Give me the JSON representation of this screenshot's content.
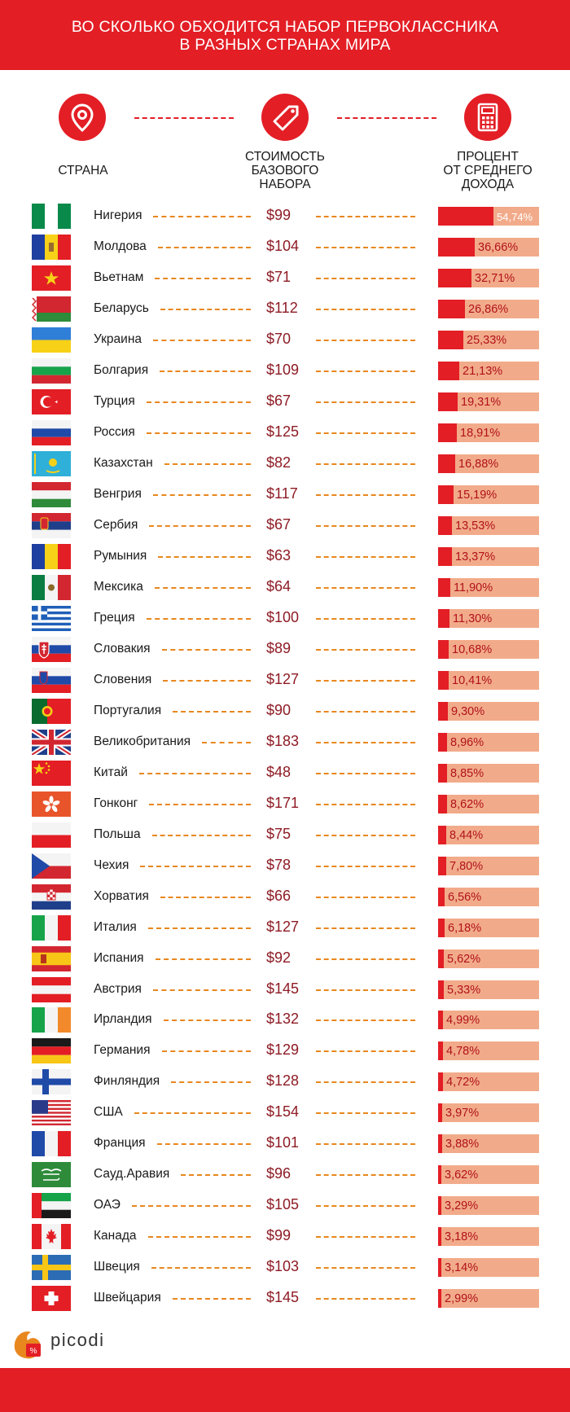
{
  "header": {
    "title_line1": "ВО СКОЛЬКО ОБХОДИТСЯ НАБОР ПЕРВОКЛАССНИКА",
    "title_line2": "В РАЗНЫХ СТРАНАХ МИРА"
  },
  "columns": {
    "country": "СТРАНА",
    "price_line1": "СТОИМОСТЬ",
    "price_line2": "БАЗОВОГО",
    "price_line3": "НАБОРА",
    "percent_line1": "ПРОЦЕНТ",
    "percent_line2": "ОТ СРЕДНЕГО",
    "percent_line3": "ДОХОДА"
  },
  "icons": [
    "location-pin-icon",
    "price-tag-icon",
    "calculator-icon"
  ],
  "colors": {
    "accent": "#e31e25",
    "bar_background": "#f2ab8a",
    "dash": "#e8871e",
    "price_text": "#8e1b24"
  },
  "chart_data": {
    "type": "table",
    "categories": [
      "Нигерия",
      "Молдова",
      "Вьетнам",
      "Беларусь",
      "Украина",
      "Болгария",
      "Турция",
      "Россия",
      "Казахстан",
      "Венгрия",
      "Сербия",
      "Румыния",
      "Мексика",
      "Греция",
      "Словакия",
      "Словения",
      "Португалия",
      "Великобритания",
      "Китай",
      "Гонконг",
      "Польша",
      "Чехия",
      "Хорватия",
      "Италия",
      "Испания",
      "Австрия",
      "Ирландия",
      "Германия",
      "Финляндия",
      "США",
      "Франция",
      "Сауд.Аравия",
      "ОАЭ",
      "Канада",
      "Швеция",
      "Швейцария"
    ],
    "prices": [
      "$99",
      "$104",
      "$71",
      "$112",
      "$70",
      "$109",
      "$67",
      "$125",
      "$82",
      "$117",
      "$67",
      "$63",
      "$64",
      "$100",
      "$89",
      "$127",
      "$90",
      "$183",
      "$48",
      "$171",
      "$75",
      "$78",
      "$66",
      "$127",
      "$92",
      "$145",
      "$132",
      "$129",
      "$128",
      "$154",
      "$101",
      "$96",
      "$105",
      "$99",
      "$103",
      "$145"
    ],
    "percent_labels": [
      "54,74%",
      "36,66%",
      "32,71%",
      "26,86%",
      "25,33%",
      "21,13%",
      "19,31%",
      "18,91%",
      "16,88%",
      "15,19%",
      "13,53%",
      "13,37%",
      "11,90%",
      "11,30%",
      "10,68%",
      "10,41%",
      "9,30%",
      "8,96%",
      "8,85%",
      "8,62%",
      "8,44%",
      "7,80%",
      "6,56%",
      "6,18%",
      "5,62%",
      "5,33%",
      "4,99%",
      "4,78%",
      "4,72%",
      "3,97%",
      "3,88%",
      "3,62%",
      "3,29%",
      "3,18%",
      "3,14%",
      "2,99%"
    ],
    "percent_values": [
      54.74,
      36.66,
      32.71,
      26.86,
      25.33,
      21.13,
      19.31,
      18.91,
      16.88,
      15.19,
      13.53,
      13.37,
      11.9,
      11.3,
      10.68,
      10.41,
      9.3,
      8.96,
      8.85,
      8.62,
      8.44,
      7.8,
      6.56,
      6.18,
      5.62,
      5.33,
      4.99,
      4.78,
      4.72,
      3.97,
      3.88,
      3.62,
      3.29,
      3.18,
      3.14,
      2.99
    ],
    "flags": [
      "nigeria-flag-icon",
      "moldova-flag-icon",
      "vietnam-flag-icon",
      "belarus-flag-icon",
      "ukraine-flag-icon",
      "bulgaria-flag-icon",
      "turkey-flag-icon",
      "russia-flag-icon",
      "kazakhstan-flag-icon",
      "hungary-flag-icon",
      "serbia-flag-icon",
      "romania-flag-icon",
      "mexico-flag-icon",
      "greece-flag-icon",
      "slovakia-flag-icon",
      "slovenia-flag-icon",
      "portugal-flag-icon",
      "uk-flag-icon",
      "china-flag-icon",
      "hongkong-flag-icon",
      "poland-flag-icon",
      "czechia-flag-icon",
      "croatia-flag-icon",
      "italy-flag-icon",
      "spain-flag-icon",
      "austria-flag-icon",
      "ireland-flag-icon",
      "germany-flag-icon",
      "finland-flag-icon",
      "usa-flag-icon",
      "france-flag-icon",
      "saudi-arabia-flag-icon",
      "uae-flag-icon",
      "canada-flag-icon",
      "sweden-flag-icon",
      "switzerland-flag-icon"
    ],
    "xlim": [
      0,
      100
    ]
  },
  "footer": {
    "logo_text": "picodi",
    "logo_icon": "picodi-logo-icon"
  }
}
